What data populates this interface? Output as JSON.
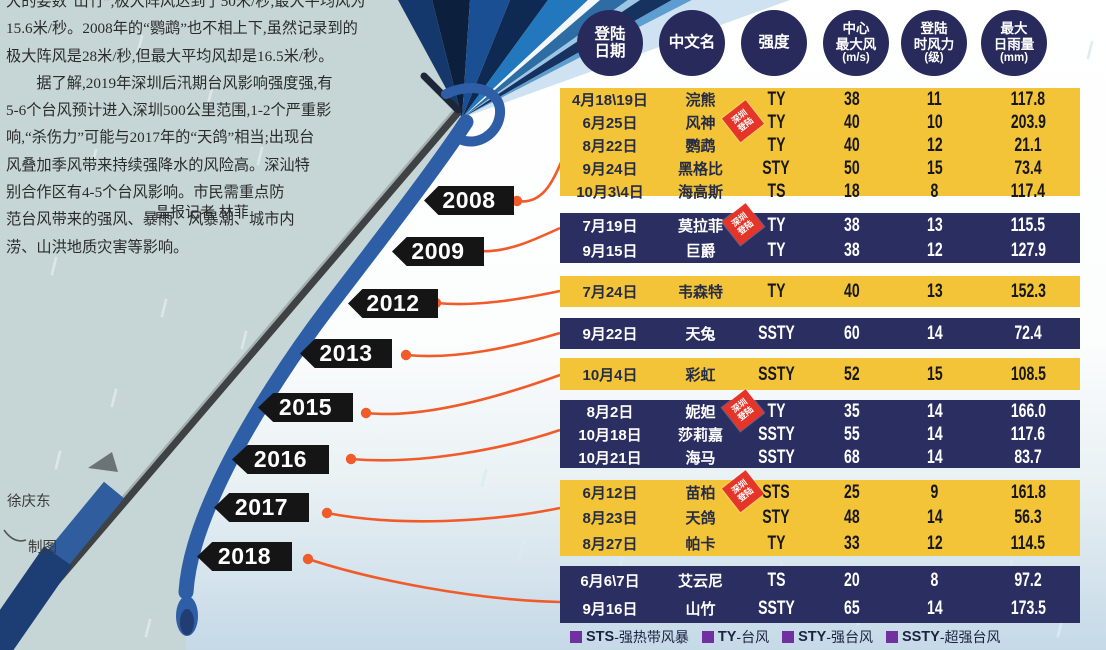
{
  "article": {
    "lines": [
      "大的要数“山竹”,极大阵风达到了50米/秒,最大平均风为",
      "15.6米/秒。2008年的“鹦鹉”也不相上下,虽然记录到的",
      "极大阵风是28米/秒,但最大平均风却是16.5米/秒。",
      "　　据了解,2019年深圳后汛期台风影响强度强,有",
      "5-6个台风预计进入深圳500公里范围,1-2个严重影",
      "响,“杀伤力”可能与2017年的“天鸽”相当;出现台",
      "风叠加季风带来持续强降水的风险高。深汕特",
      "别合作区有4-5个台风影响。市民需重点防",
      "范台风带来的强风、暴雨、风暴潮、城市内",
      "涝、山洪地质灾害等影响。"
    ],
    "byline": "晶报记者 林菲"
  },
  "credits": {
    "name": "徐庆东",
    "role": "制图"
  },
  "colors": {
    "yellow": "#f3c437",
    "navy": "#2b2e60",
    "orange": "#f15a29",
    "badge_red": "#e53529",
    "legend_purple": "#7030a0",
    "flag_black": "#151515"
  },
  "chart_data": {
    "type": "table",
    "columns": [
      {
        "id": "date",
        "lines": [
          "登陆",
          "日期"
        ]
      },
      {
        "id": "name",
        "lines": [
          "中文名"
        ]
      },
      {
        "id": "intensity",
        "lines": [
          "强度"
        ]
      },
      {
        "id": "wind",
        "lines": [
          "中心",
          "最大风",
          "(m/s)"
        ]
      },
      {
        "id": "force",
        "lines": [
          "登陆",
          "时风力",
          "(级)"
        ]
      },
      {
        "id": "rain",
        "lines": [
          "最大",
          "日雨量",
          "(mm)"
        ]
      }
    ],
    "badge_label": [
      "深圳",
      "登陆"
    ],
    "groups": [
      {
        "year": "2008",
        "rows": [
          {
            "date": "4月18\\19日",
            "name": "浣熊",
            "intensity": "TY",
            "wind": "38",
            "force": "11",
            "rain": "117.8"
          },
          {
            "date": "6月25日",
            "name": "风神",
            "badge": true,
            "intensity": "TY",
            "wind": "40",
            "force": "10",
            "rain": "203.9"
          },
          {
            "date": "8月22日",
            "name": "鹦鹉",
            "intensity": "TY",
            "wind": "40",
            "force": "12",
            "rain": "21.1"
          },
          {
            "date": "9月24日",
            "name": "黑格比",
            "intensity": "STY",
            "wind": "50",
            "force": "15",
            "rain": "73.4"
          },
          {
            "date": "10月3\\4日",
            "name": "海高斯",
            "intensity": "TS",
            "wind": "18",
            "force": "8",
            "rain": "117.4"
          }
        ]
      },
      {
        "year": "2009",
        "rows": [
          {
            "date": "7月19日",
            "name": "莫拉菲",
            "badge": true,
            "intensity": "TY",
            "wind": "38",
            "force": "13",
            "rain": "115.5"
          },
          {
            "date": "9月15日",
            "name": "巨爵",
            "intensity": "TY",
            "wind": "38",
            "force": "12",
            "rain": "127.9"
          }
        ]
      },
      {
        "year": "2012",
        "rows": [
          {
            "date": "7月24日",
            "name": "韦森特",
            "intensity": "TY",
            "wind": "40",
            "force": "13",
            "rain": "152.3"
          }
        ]
      },
      {
        "year": "2013",
        "rows": [
          {
            "date": "9月22日",
            "name": "天兔",
            "intensity": "SSTY",
            "wind": "60",
            "force": "14",
            "rain": "72.4"
          }
        ]
      },
      {
        "year": "2015",
        "rows": [
          {
            "date": "10月4日",
            "name": "彩虹",
            "intensity": "SSTY",
            "wind": "52",
            "force": "15",
            "rain": "108.5"
          }
        ]
      },
      {
        "year": "2016",
        "rows": [
          {
            "date": "8月2日",
            "name": "妮妲",
            "badge": true,
            "intensity": "TY",
            "wind": "35",
            "force": "14",
            "rain": "166.0"
          },
          {
            "date": "10月18日",
            "name": "莎莉嘉",
            "intensity": "SSTY",
            "wind": "55",
            "force": "14",
            "rain": "117.6"
          },
          {
            "date": "10月21日",
            "name": "海马",
            "intensity": "SSTY",
            "wind": "68",
            "force": "14",
            "rain": "83.7"
          }
        ]
      },
      {
        "year": "2017",
        "rows": [
          {
            "date": "6月12日",
            "name": "苗柏",
            "badge": true,
            "intensity": "STS",
            "wind": "25",
            "force": "9",
            "rain": "161.8"
          },
          {
            "date": "8月23日",
            "name": "天鸽",
            "intensity": "STY",
            "wind": "48",
            "force": "14",
            "rain": "56.3"
          },
          {
            "date": "8月27日",
            "name": "帕卡",
            "intensity": "TY",
            "wind": "33",
            "force": "12",
            "rain": "114.5"
          }
        ]
      },
      {
        "year": "2018",
        "rows": [
          {
            "date": "6月6\\7日",
            "name": "艾云尼",
            "intensity": "TS",
            "wind": "20",
            "force": "8",
            "rain": "97.2"
          },
          {
            "date": "9月16日",
            "name": "山竹",
            "intensity": "SSTY",
            "wind": "65",
            "force": "14",
            "rain": "173.5"
          }
        ]
      }
    ],
    "legend": [
      {
        "code": "STS",
        "label": "-强热带风暴"
      },
      {
        "code": "TY",
        "label": "-台风"
      },
      {
        "code": "STY",
        "label": "-强台风"
      },
      {
        "code": "SSTY",
        "label": "-超强台风"
      }
    ]
  }
}
